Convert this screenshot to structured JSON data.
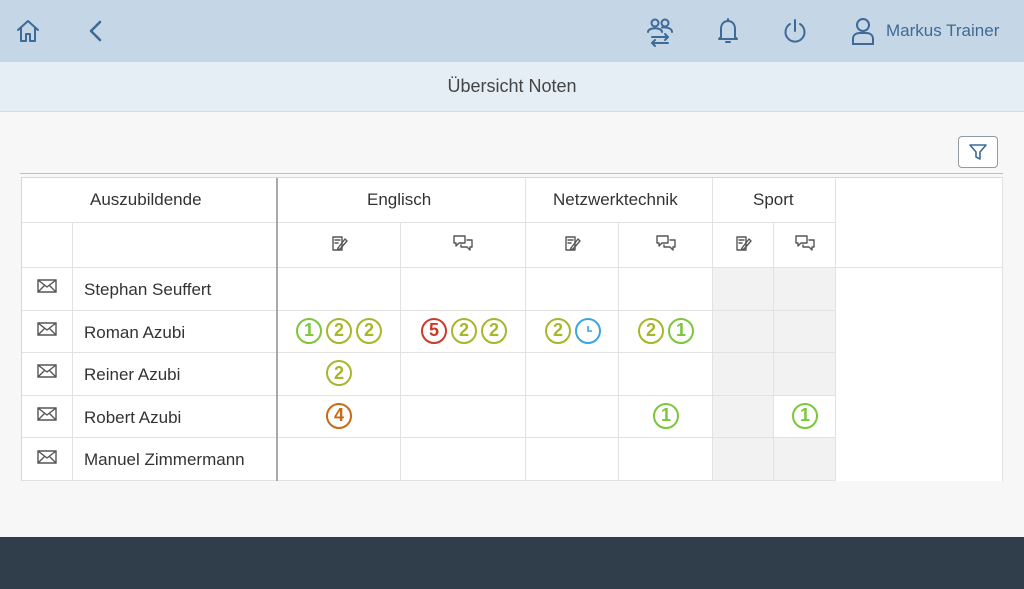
{
  "header": {
    "user_name": "Markus Trainer",
    "icons": [
      "home-icon",
      "back-icon",
      "switch-users-icon",
      "bell-icon",
      "power-icon",
      "user-icon"
    ]
  },
  "page": {
    "title": "Übersicht Noten"
  },
  "table": {
    "col_trainee": "Auszubildende",
    "subjects": [
      {
        "name": "Englisch"
      },
      {
        "name": "Netzwerktechnik"
      },
      {
        "name": "Sport"
      }
    ],
    "sub_icons": [
      "exam-icon",
      "oral-icon"
    ],
    "rows": [
      {
        "name": "Stephan Seuffert",
        "grades": [
          [],
          [],
          [],
          [],
          [],
          []
        ]
      },
      {
        "name": "Roman Azubi",
        "grades": [
          [
            "1",
            "2",
            "2"
          ],
          [
            "5",
            "2",
            "2"
          ],
          [
            "2",
            "clock"
          ],
          [
            "2",
            "1"
          ],
          [],
          []
        ]
      },
      {
        "name": "Reiner Azubi",
        "grades": [
          [
            "2"
          ],
          [],
          [],
          [],
          [],
          []
        ]
      },
      {
        "name": "Robert Azubi",
        "grades": [
          [
            "4"
          ],
          [],
          [],
          [
            "1"
          ],
          [],
          [
            "1"
          ]
        ]
      },
      {
        "name": "Manuel Zimmermann",
        "grades": [
          [],
          [],
          [],
          [],
          [],
          []
        ]
      }
    ]
  },
  "colors": {
    "header_bg": "#c5d7e6",
    "accent": "#3d6a97",
    "grade_1": "#7cc63a",
    "grade_2": "#a4b82a",
    "grade_4": "#c76a16",
    "grade_5": "#cc3a2a",
    "pending": "#3aa6e0",
    "footer_bg": "#2f3e4a"
  }
}
